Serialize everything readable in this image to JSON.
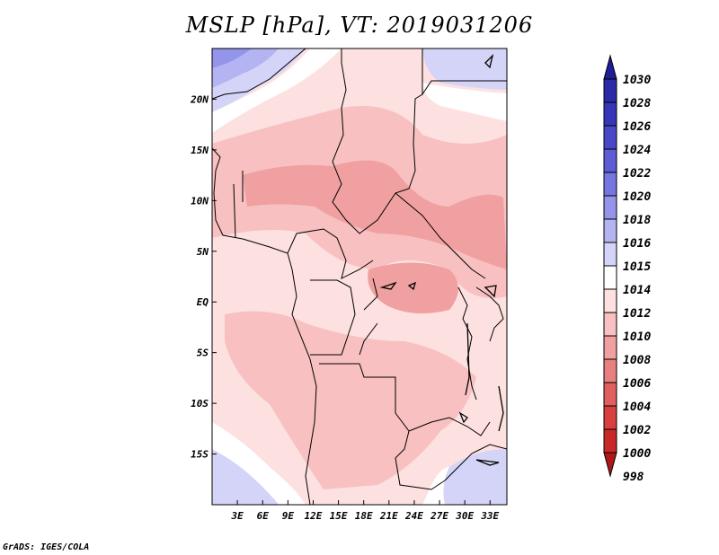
{
  "title": "MSLP [hPa], VT: 2019031206",
  "credit": "GrADS: IGES/COLA",
  "map": {
    "lon_range": [
      0,
      35
    ],
    "lat_range": [
      -20,
      25
    ],
    "x_ticks": [
      {
        "value": 3,
        "label": "3E"
      },
      {
        "value": 6,
        "label": "6E"
      },
      {
        "value": 9,
        "label": "9E"
      },
      {
        "value": 12,
        "label": "12E"
      },
      {
        "value": 15,
        "label": "15E"
      },
      {
        "value": 18,
        "label": "18E"
      },
      {
        "value": 21,
        "label": "21E"
      },
      {
        "value": 24,
        "label": "24E"
      },
      {
        "value": 27,
        "label": "27E"
      },
      {
        "value": 30,
        "label": "30E"
      },
      {
        "value": 33,
        "label": "33E"
      }
    ],
    "y_ticks": [
      {
        "value": 20,
        "label": "20N"
      },
      {
        "value": 15,
        "label": "15N"
      },
      {
        "value": 10,
        "label": "10N"
      },
      {
        "value": 5,
        "label": "5N"
      },
      {
        "value": 0,
        "label": "EQ"
      },
      {
        "value": -5,
        "label": "5S"
      },
      {
        "value": -10,
        "label": "10S"
      },
      {
        "value": -15,
        "label": "15S"
      }
    ]
  },
  "colorbar": {
    "levels": [
      {
        "label": "1030",
        "color": "#1e1e96"
      },
      {
        "label": "1028",
        "color": "#2a2aa8"
      },
      {
        "label": "1026",
        "color": "#3636b8"
      },
      {
        "label": "1024",
        "color": "#4848c8"
      },
      {
        "label": "1022",
        "color": "#5c5cd4"
      },
      {
        "label": "1020",
        "color": "#7676e0"
      },
      {
        "label": "1018",
        "color": "#9494ea"
      },
      {
        "label": "1016",
        "color": "#b4b4f2"
      },
      {
        "label": "1015",
        "color": "#d4d4f8"
      },
      {
        "label": "1014",
        "color": "#ffffff"
      },
      {
        "label": "1012",
        "color": "#fde0e0"
      },
      {
        "label": "1010",
        "color": "#f8c0c0"
      },
      {
        "label": "1008",
        "color": "#f0a0a0"
      },
      {
        "label": "1006",
        "color": "#e88080"
      },
      {
        "label": "1004",
        "color": "#e06060"
      },
      {
        "label": "1002",
        "color": "#d84040"
      },
      {
        "label": "1000",
        "color": "#c82828"
      },
      {
        "label": "998",
        "color": "#b01818"
      }
    ]
  }
}
